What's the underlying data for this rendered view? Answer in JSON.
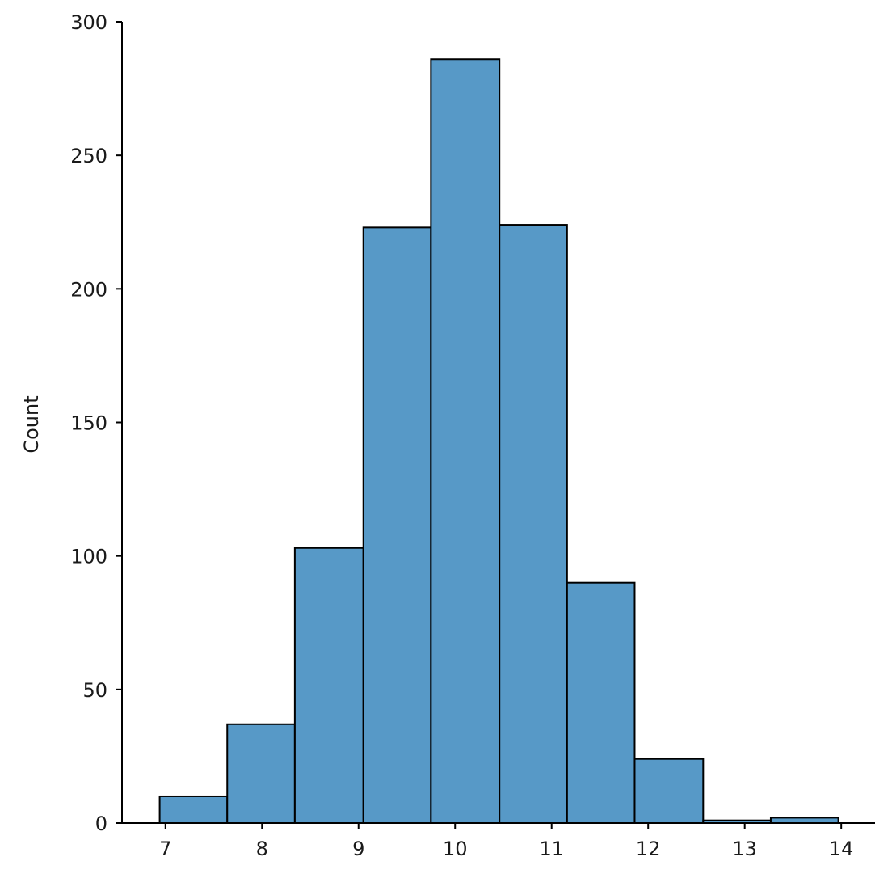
{
  "chart_data": {
    "type": "bar",
    "subtype": "histogram",
    "title": "",
    "xlabel": "",
    "ylabel": "Count",
    "bins": [
      {
        "x0": 6.94,
        "x1": 7.64,
        "count": 10
      },
      {
        "x0": 7.64,
        "x1": 8.34,
        "count": 37
      },
      {
        "x0": 8.34,
        "x1": 9.05,
        "count": 103
      },
      {
        "x0": 9.05,
        "x1": 9.75,
        "count": 223
      },
      {
        "x0": 9.75,
        "x1": 10.46,
        "count": 286
      },
      {
        "x0": 10.46,
        "x1": 11.16,
        "count": 224
      },
      {
        "x0": 11.16,
        "x1": 11.86,
        "count": 90
      },
      {
        "x0": 11.86,
        "x1": 12.57,
        "count": 24
      },
      {
        "x0": 12.57,
        "x1": 13.27,
        "count": 1
      },
      {
        "x0": 13.27,
        "x1": 13.97,
        "count": 2
      }
    ],
    "xlim": [
      6.55,
      14.35
    ],
    "ylim": [
      0,
      300
    ],
    "x_ticks": [
      7,
      8,
      9,
      10,
      11,
      12,
      13,
      14
    ],
    "x_tick_labels": [
      "7",
      "8",
      "9",
      "10",
      "11",
      "12",
      "13",
      "14"
    ],
    "y_ticks": [
      0,
      50,
      100,
      150,
      200,
      250,
      300
    ],
    "y_tick_labels": [
      "0",
      "50",
      "100",
      "150",
      "200",
      "250",
      "300"
    ],
    "grid": false,
    "legend": null,
    "colors": {
      "bar_fill": "#5799c7",
      "bar_edge": "#000000",
      "axis": "#000000",
      "background": "#ffffff"
    }
  }
}
